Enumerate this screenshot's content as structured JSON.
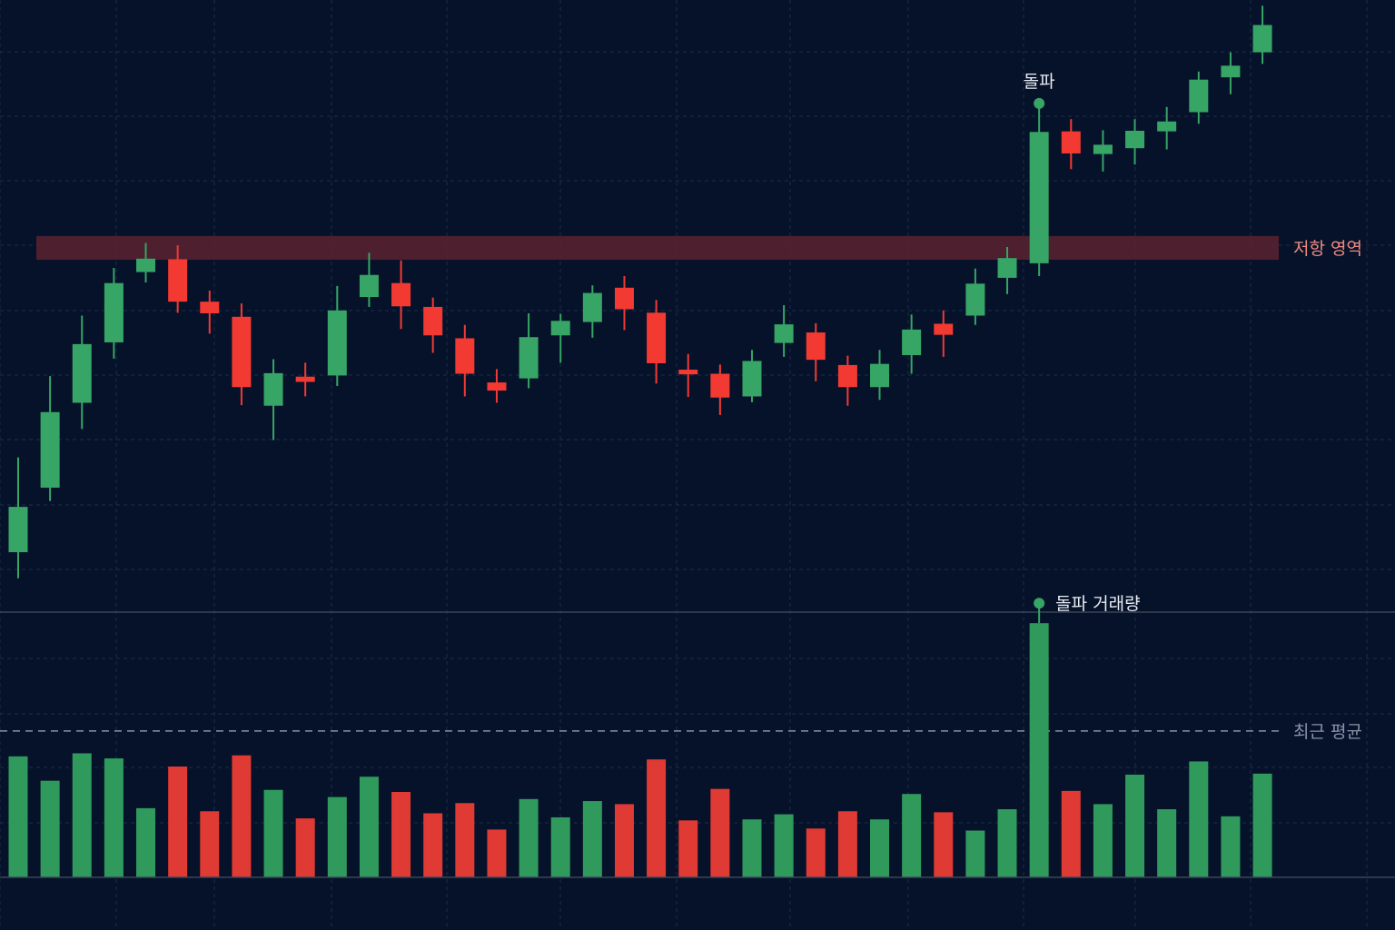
{
  "colors": {
    "background": "#06122a",
    "grid": "#1c2d48",
    "up": "#36a565",
    "down": "#f23a33",
    "up_volume": "#2f9a5c",
    "down_volume": "#df3a33",
    "resistance_zone": "#5a2230",
    "resistance_label": "#f08a80",
    "average_line": "#8a94a6",
    "annotation_text": "#e8ecf2",
    "panel_divider": "#3b4558"
  },
  "chart_data": [
    {
      "type": "candlestick",
      "title": "",
      "xlabel": "",
      "ylabel": "",
      "ylim": [
        0,
        1000
      ],
      "grid": true,
      "candles": [
        {
          "open": 50,
          "close": 128,
          "high": 213,
          "low": 5
        },
        {
          "open": 161,
          "close": 291,
          "high": 353,
          "low": 138
        },
        {
          "open": 307,
          "close": 408,
          "high": 457,
          "low": 262
        },
        {
          "open": 411,
          "close": 513,
          "high": 539,
          "low": 383
        },
        {
          "open": 532,
          "close": 555,
          "high": 582,
          "low": 514
        },
        {
          "open": 554,
          "close": 481,
          "high": 578,
          "low": 462
        },
        {
          "open": 481,
          "close": 461,
          "high": 500,
          "low": 426
        },
        {
          "open": 455,
          "close": 334,
          "high": 478,
          "low": 303
        },
        {
          "open": 302,
          "close": 358,
          "high": 382,
          "low": 243
        },
        {
          "open": 352,
          "close": 343,
          "high": 376,
          "low": 318
        },
        {
          "open": 354,
          "close": 466,
          "high": 508,
          "low": 336
        },
        {
          "open": 489,
          "close": 527,
          "high": 565,
          "low": 472
        },
        {
          "open": 513,
          "close": 473,
          "high": 552,
          "low": 434
        },
        {
          "open": 472,
          "close": 423,
          "high": 488,
          "low": 393
        },
        {
          "open": 418,
          "close": 357,
          "high": 441,
          "low": 318
        },
        {
          "open": 342,
          "close": 328,
          "high": 365,
          "low": 307
        },
        {
          "open": 349,
          "close": 420,
          "high": 461,
          "low": 332
        },
        {
          "open": 423,
          "close": 448,
          "high": 460,
          "low": 376
        },
        {
          "open": 446,
          "close": 496,
          "high": 509,
          "low": 419
        },
        {
          "open": 505,
          "close": 468,
          "high": 525,
          "low": 432
        },
        {
          "open": 462,
          "close": 375,
          "high": 484,
          "low": 340
        },
        {
          "open": 364,
          "close": 356,
          "high": 391,
          "low": 317
        },
        {
          "open": 357,
          "close": 316,
          "high": 373,
          "low": 286
        },
        {
          "open": 318,
          "close": 379,
          "high": 398,
          "low": 308
        },
        {
          "open": 410,
          "close": 442,
          "high": 475,
          "low": 386
        },
        {
          "open": 428,
          "close": 381,
          "high": 444,
          "low": 344
        },
        {
          "open": 372,
          "close": 334,
          "high": 388,
          "low": 302
        },
        {
          "open": 334,
          "close": 374,
          "high": 398,
          "low": 312
        },
        {
          "open": 389,
          "close": 433,
          "high": 459,
          "low": 357
        },
        {
          "open": 443,
          "close": 424,
          "high": 466,
          "low": 386
        },
        {
          "open": 457,
          "close": 512,
          "high": 538,
          "low": 441
        },
        {
          "open": 522,
          "close": 556,
          "high": 575,
          "low": 494
        },
        {
          "open": 547,
          "close": 773,
          "high": 822,
          "low": 525
        },
        {
          "open": 774,
          "close": 736,
          "high": 795,
          "low": 709
        },
        {
          "open": 735,
          "close": 751,
          "high": 776,
          "low": 705
        },
        {
          "open": 745,
          "close": 775,
          "high": 795,
          "low": 717
        },
        {
          "open": 774,
          "close": 791,
          "high": 816,
          "low": 743
        },
        {
          "open": 807,
          "close": 863,
          "high": 877,
          "low": 787
        },
        {
          "open": 867,
          "close": 887,
          "high": 910,
          "low": 838
        },
        {
          "open": 910,
          "close": 957,
          "high": 990,
          "low": 890
        }
      ],
      "resistance_zone": {
        "low": 553,
        "high": 594,
        "label": "저항 영역"
      },
      "annotations": [
        {
          "candle_index": 32,
          "label": "돌파"
        }
      ]
    },
    {
      "type": "bar",
      "title": "",
      "ylim": [
        0,
        260
      ],
      "values": [
        119,
        95,
        122,
        117,
        68,
        109,
        65,
        120,
        86,
        58,
        79,
        99,
        84,
        63,
        73,
        47,
        77,
        59,
        75,
        72,
        116,
        56,
        87,
        57,
        62,
        48,
        65,
        57,
        82,
        64,
        46,
        67,
        250,
        85,
        72,
        101,
        67,
        114,
        60,
        102
      ],
      "directions": [
        "up",
        "up",
        "up",
        "up",
        "up",
        "down",
        "down",
        "down",
        "up",
        "down",
        "up",
        "up",
        "down",
        "down",
        "down",
        "down",
        "up",
        "up",
        "up",
        "down",
        "down",
        "down",
        "down",
        "up",
        "up",
        "down",
        "down",
        "up",
        "up",
        "down",
        "up",
        "up",
        "up",
        "down",
        "up",
        "up",
        "up",
        "up",
        "up",
        "up"
      ],
      "average": {
        "value": 144,
        "label": "최근 평균"
      },
      "annotations": [
        {
          "bar_index": 32,
          "label": "돌파 거래량"
        }
      ]
    }
  ]
}
